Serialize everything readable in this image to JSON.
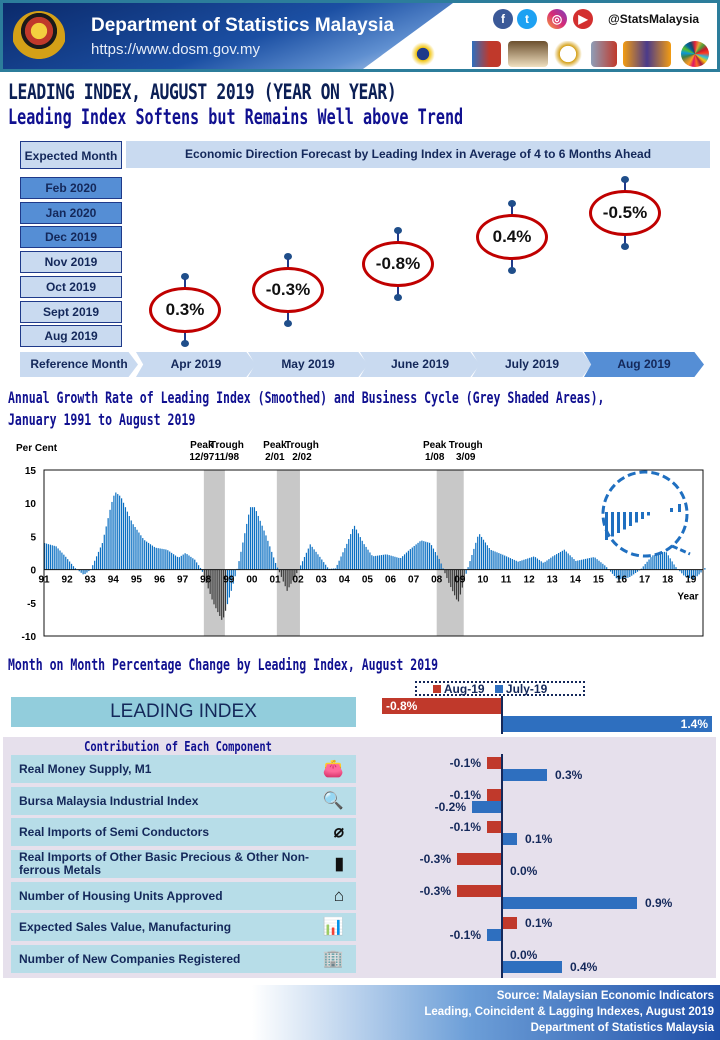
{
  "header": {
    "title": "Department of Statistics Malaysia",
    "url": "https://www.dosm.gov.my",
    "social_handle": "@StatsMalaysia",
    "social_icons": [
      "facebook-icon",
      "twitter-icon",
      "instagram-icon",
      "youtube-icon"
    ],
    "logos": [
      "statistik-negara",
      "WRC 2019",
      "MyStats 2019",
      "70",
      "ISI 2019",
      "census 2020",
      "SDG"
    ]
  },
  "title": "LEADING INDEX, AUGUST 2019 (YEAR ON YEAR)",
  "subtitle": "Leading Index Softens but Remains Well above Trend",
  "forecast": {
    "expected_label": "Expected Month",
    "header": "Economic Direction Forecast by Leading Index in Average of 4 to 6 Months Ahead",
    "expected_months": [
      "Feb 2020",
      "Jan 2020",
      "Dec 2019",
      "Nov 2019",
      "Oct 2019",
      "Sept 2019",
      "Aug 2019"
    ],
    "reference_label": "Reference Month",
    "reference_months": [
      "Apr 2019",
      "May 2019",
      "June 2019",
      "July 2019",
      "Aug 2019"
    ],
    "values": [
      "0.3%",
      "-0.3%",
      "-0.8%",
      "0.4%",
      "-0.5%"
    ]
  },
  "chart_data": [
    {
      "type": "bar",
      "title": "Annual Growth Rate of Leading Index (Smoothed) and Business Cycle (Grey Shaded Areas), January 1991 to August 2019",
      "ylabel": "Per Cent",
      "xlabel": "Year",
      "ylim": [
        -10,
        15
      ],
      "yticks": [
        "15",
        "10",
        "5",
        "0",
        "-5",
        "-10"
      ],
      "xticks": [
        "91",
        "92",
        "93",
        "94",
        "95",
        "96",
        "97",
        "98",
        "99",
        "00",
        "01",
        "02",
        "03",
        "04",
        "05",
        "06",
        "07",
        "08",
        "09",
        "10",
        "11",
        "12",
        "13",
        "14",
        "15",
        "16",
        "17",
        "18",
        "19"
      ],
      "shaded_periods": [
        {
          "peak": "Peak",
          "peak_date": "12/97",
          "trough": "Trough",
          "trough_date": "11/98"
        },
        {
          "peak": "Peak",
          "peak_date": "2/01",
          "trough": "Trough",
          "trough_date": "2/02"
        },
        {
          "peak": "Peak",
          "peak_date": "1/08",
          "trough": "Trough",
          "trough_date": "3/09"
        }
      ],
      "series_points": [
        [
          1991.0,
          4
        ],
        [
          1991.5,
          3.5
        ],
        [
          1991.9,
          2
        ],
        [
          1992.3,
          0.3
        ],
        [
          1992.7,
          -0.8
        ],
        [
          1993.0,
          0
        ],
        [
          1993.5,
          4
        ],
        [
          1993.9,
          10
        ],
        [
          1994.05,
          11.7
        ],
        [
          1994.3,
          11
        ],
        [
          1994.8,
          7
        ],
        [
          1995.3,
          4.5
        ],
        [
          1995.8,
          3.3
        ],
        [
          1996.3,
          3
        ],
        [
          1996.8,
          1.8
        ],
        [
          1997.1,
          2.5
        ],
        [
          1997.5,
          1.5
        ],
        [
          1997.8,
          0
        ],
        [
          1998.3,
          -5
        ],
        [
          1998.7,
          -7.8
        ],
        [
          1999.1,
          -3
        ],
        [
          1999.4,
          1
        ],
        [
          1999.9,
          9.4
        ],
        [
          2000.1,
          9.4
        ],
        [
          2000.6,
          5
        ],
        [
          2001.0,
          1
        ],
        [
          2001.5,
          -3.2
        ],
        [
          2002.0,
          0
        ],
        [
          2002.5,
          3.8
        ],
        [
          2002.9,
          2
        ],
        [
          2003.3,
          0.1
        ],
        [
          2003.6,
          0.2
        ],
        [
          2004.1,
          4
        ],
        [
          2004.4,
          6.7
        ],
        [
          2004.8,
          4
        ],
        [
          2005.2,
          2
        ],
        [
          2005.8,
          2.3
        ],
        [
          2006.4,
          1.7
        ],
        [
          2006.8,
          3
        ],
        [
          2007.3,
          4.4
        ],
        [
          2007.7,
          4
        ],
        [
          2008.1,
          1.5
        ],
        [
          2008.5,
          -2
        ],
        [
          2008.9,
          -5
        ],
        [
          2009.3,
          0
        ],
        [
          2009.8,
          5.5
        ],
        [
          2010.3,
          3
        ],
        [
          2010.8,
          2.3
        ],
        [
          2011.5,
          1.2
        ],
        [
          2012.2,
          2
        ],
        [
          2012.6,
          1
        ],
        [
          2013.0,
          2
        ],
        [
          2013.5,
          3
        ],
        [
          2014.0,
          1.3
        ],
        [
          2014.8,
          1.9
        ],
        [
          2015.3,
          0.5
        ],
        [
          2015.8,
          -1.5
        ],
        [
          2016.3,
          -1.2
        ],
        [
          2016.8,
          0
        ],
        [
          2017.4,
          2.5
        ],
        [
          2017.9,
          2.7
        ],
        [
          2018.3,
          0.5
        ],
        [
          2018.7,
          -1
        ],
        [
          2019.1,
          -1.5
        ],
        [
          2019.4,
          -0.5
        ],
        [
          2019.6,
          0.3
        ]
      ]
    },
    {
      "type": "bar",
      "orientation": "horizontal",
      "title": "Month on Month Percentage Change by Leading Index, August 2019",
      "legend_position": "top",
      "series": [
        {
          "name": "Aug-19",
          "color": "#c0392b"
        },
        {
          "name": "July-19",
          "color": "#2e6fbf"
        }
      ],
      "headline": {
        "label": "LEADING INDEX",
        "aug": -0.8,
        "jul": 1.4,
        "aug_label": "-0.8%",
        "jul_label": "1.4%"
      },
      "contribution_title": "Contribution of Each Component",
      "components": [
        {
          "label": "Real Money Supply, M1",
          "icon": "wallet-icon",
          "aug": -0.1,
          "jul": 0.3,
          "aug_label": "-0.1%",
          "jul_label": "0.3%"
        },
        {
          "label": "Bursa Malaysia Industrial Index",
          "icon": "magnifier-chart-icon",
          "aug": -0.1,
          "jul": -0.2,
          "aug_label": "-0.1%",
          "jul_label": "-0.2%"
        },
        {
          "label": "Real Imports of Semi Conductors",
          "icon": "chip-icon",
          "aug": -0.1,
          "jul": 0.1,
          "aug_label": "-0.1%",
          "jul_label": "0.1%"
        },
        {
          "label": "Real Imports of Other Basic Precious & Other Non-ferrous Metals",
          "icon": "metal-bar-icon",
          "aug": -0.3,
          "jul": 0.0,
          "aug_label": "-0.3%",
          "jul_label": "0.0%"
        },
        {
          "label": "Number of Housing Units Approved",
          "icon": "house-icon",
          "aug": -0.3,
          "jul": 0.9,
          "aug_label": "-0.3%",
          "jul_label": "0.9%"
        },
        {
          "label": "Expected Sales Value, Manufacturing",
          "icon": "presentation-icon",
          "aug": 0.1,
          "jul": -0.1,
          "aug_label": "0.1%",
          "jul_label": "-0.1%"
        },
        {
          "label": "Number of New Companies Registered",
          "icon": "building-icon",
          "aug": 0.0,
          "jul": 0.4,
          "aug_label": "0.0%",
          "jul_label": "0.4%"
        }
      ]
    }
  ],
  "footer": {
    "source": "Source:  Malaysian Economic Indicators",
    "line2": "Leading, Coincident & Lagging Indexes, August 2019",
    "line3": "Department of Statistics Malaysia"
  }
}
